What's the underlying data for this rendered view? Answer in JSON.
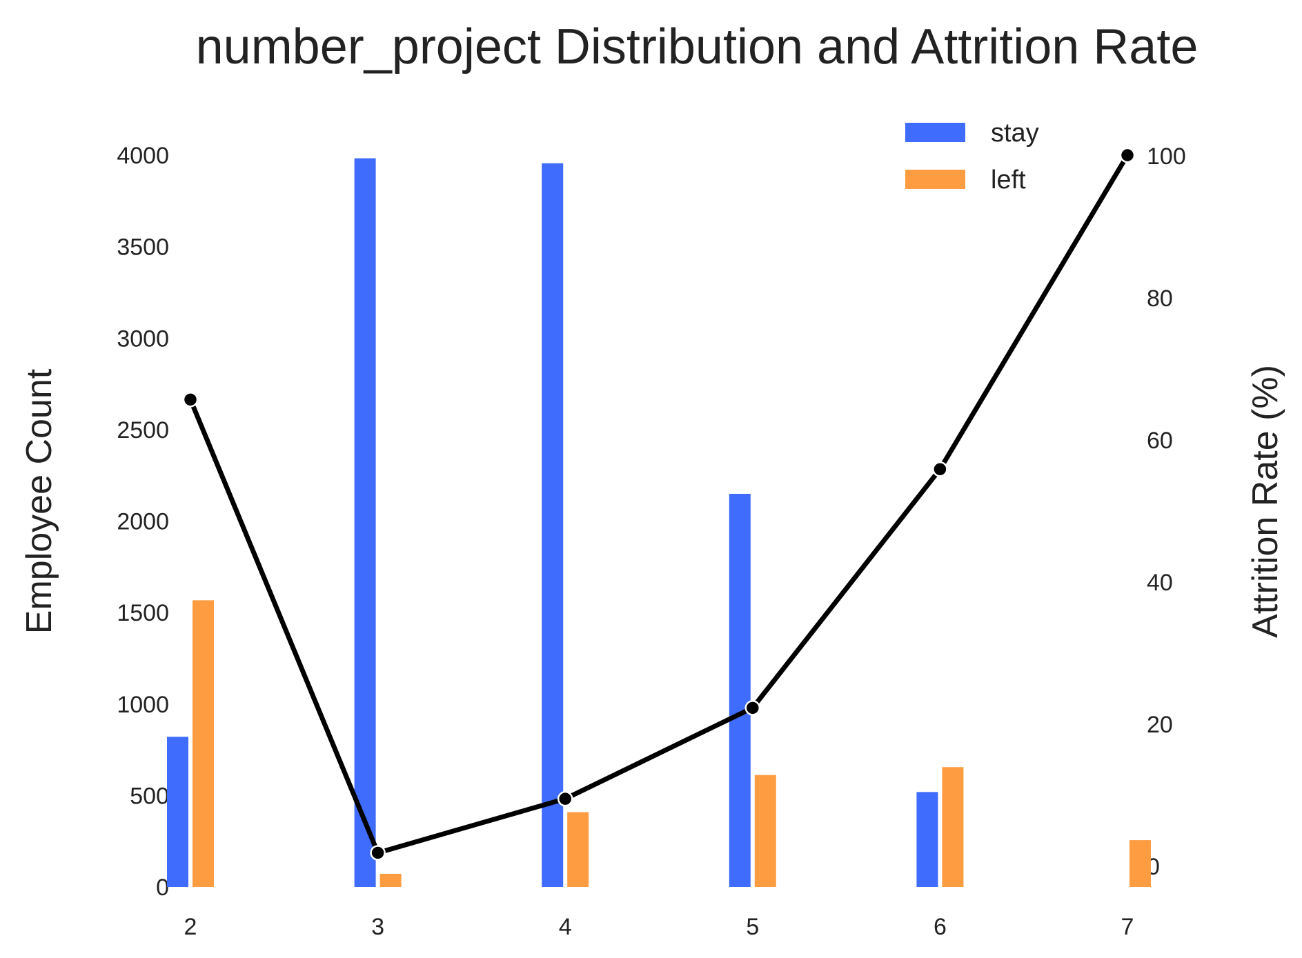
{
  "chart_data": {
    "type": "bar",
    "title": "number_project Distribution and Attrition Rate",
    "xlabel": "",
    "ylabel": "Employee Count",
    "y2label": "Attrition Rate (%)",
    "categories": [
      "2",
      "3",
      "4",
      "5",
      "6",
      "7"
    ],
    "ylim": [
      0,
      4000
    ],
    "y2lim": [
      0,
      100
    ],
    "yticks": [
      "0",
      "500",
      "1000",
      "1500",
      "2000",
      "2500",
      "3000",
      "3500",
      "4000"
    ],
    "y2ticks": [
      "0",
      "20",
      "40",
      "60",
      "80",
      "100"
    ],
    "grid": false,
    "legend_position": "top-right",
    "series": [
      {
        "name": "stay",
        "type": "bar",
        "color": "#3f6cfc",
        "values": [
          821,
          3983,
          3956,
          2149,
          519,
          0
        ]
      },
      {
        "name": "left",
        "type": "bar",
        "color": "#fe9c41",
        "values": [
          1567,
          72,
          409,
          612,
          655,
          256
        ]
      },
      {
        "name": "",
        "type": "line",
        "axis": "right",
        "color": "#000000",
        "values": [
          65.6,
          1.8,
          9.4,
          22.2,
          55.8,
          100
        ]
      }
    ]
  }
}
